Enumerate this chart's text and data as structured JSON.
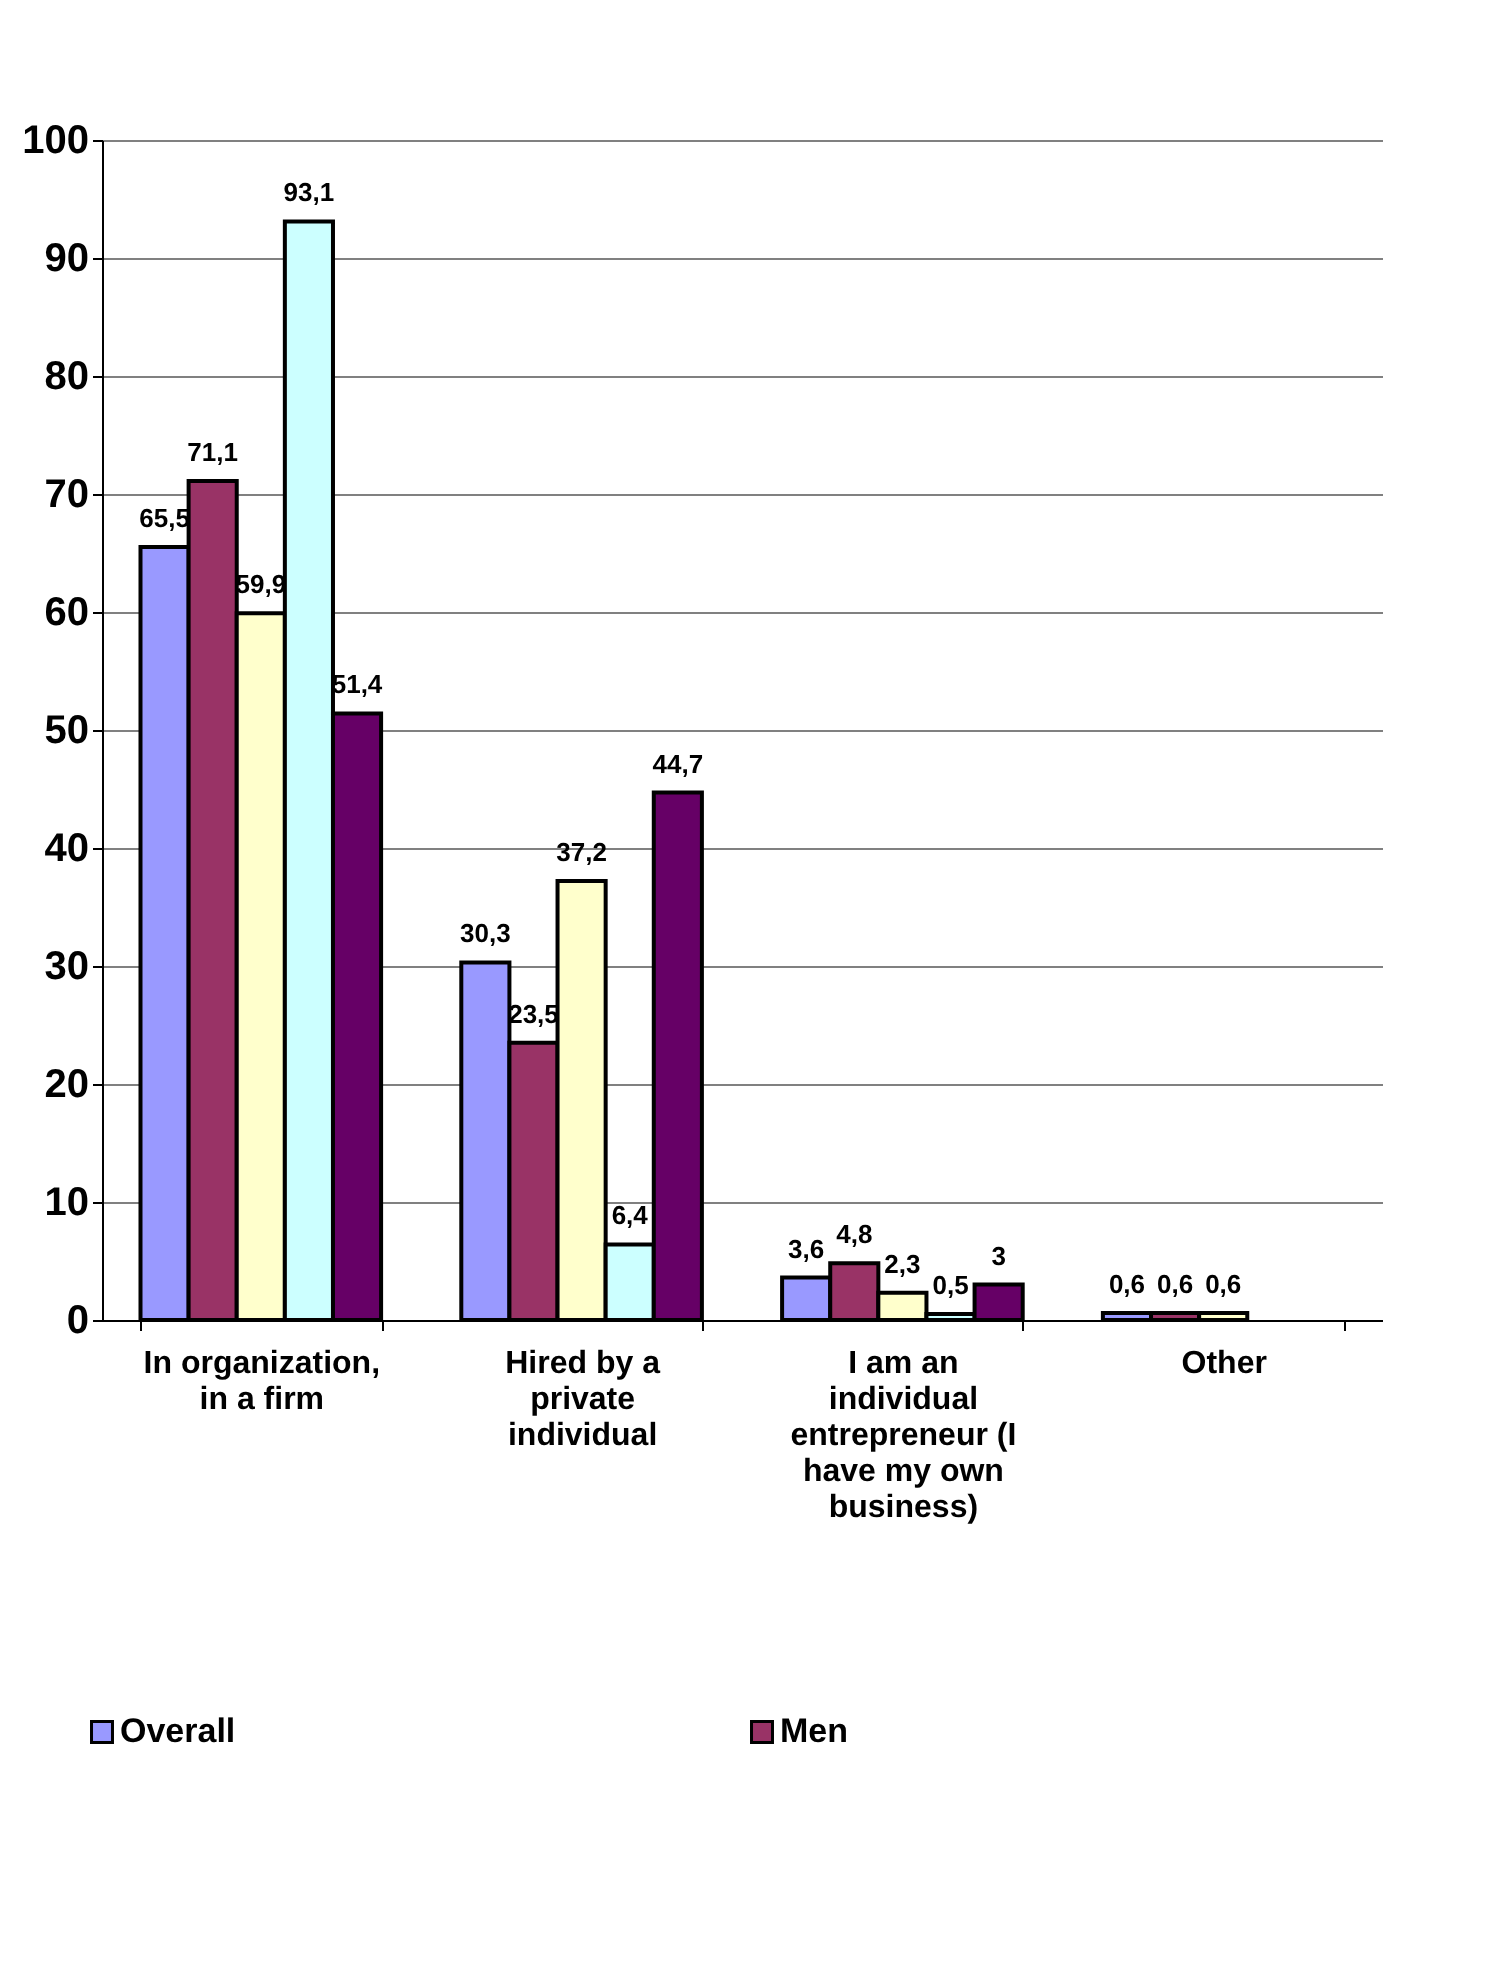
{
  "chart_data": {
    "type": "bar",
    "categories": [
      "In organization, in a firm",
      "Hired by a private individual",
      "I am an individual entrepreneur (I have my own business)",
      "Other"
    ],
    "series": [
      {
        "name": "Overall",
        "color": "#9999ff",
        "values": [
          65.5,
          30.3,
          3.6,
          0.6
        ],
        "value_labels": [
          "65,5",
          "30,3",
          "3,6",
          "0,6"
        ]
      },
      {
        "name": "Men",
        "color": "#993366",
        "values": [
          71.1,
          23.5,
          4.8,
          0.6
        ],
        "value_labels": [
          "71,1",
          "23,5",
          "4,8",
          "0,6"
        ]
      },
      {
        "color": "#ffffcc",
        "values": [
          59.9,
          37.2,
          2.3,
          0.6
        ],
        "value_labels": [
          "59,9",
          "37,2",
          "2,3",
          "0,6"
        ]
      },
      {
        "color": "#ccffff",
        "values": [
          93.1,
          6.4,
          0.5,
          null
        ],
        "value_labels": [
          "93,1",
          "6,4",
          "0,5",
          null
        ]
      },
      {
        "color": "#660066",
        "values": [
          51.4,
          44.7,
          3,
          null
        ],
        "value_labels": [
          "51,4",
          "44,7",
          "3",
          null
        ]
      }
    ],
    "ylim": [
      0,
      100
    ],
    "yticks": [
      0,
      10,
      20,
      30,
      40,
      50,
      60,
      70,
      80,
      90,
      100
    ],
    "grid": "y",
    "legend": "bottom"
  }
}
